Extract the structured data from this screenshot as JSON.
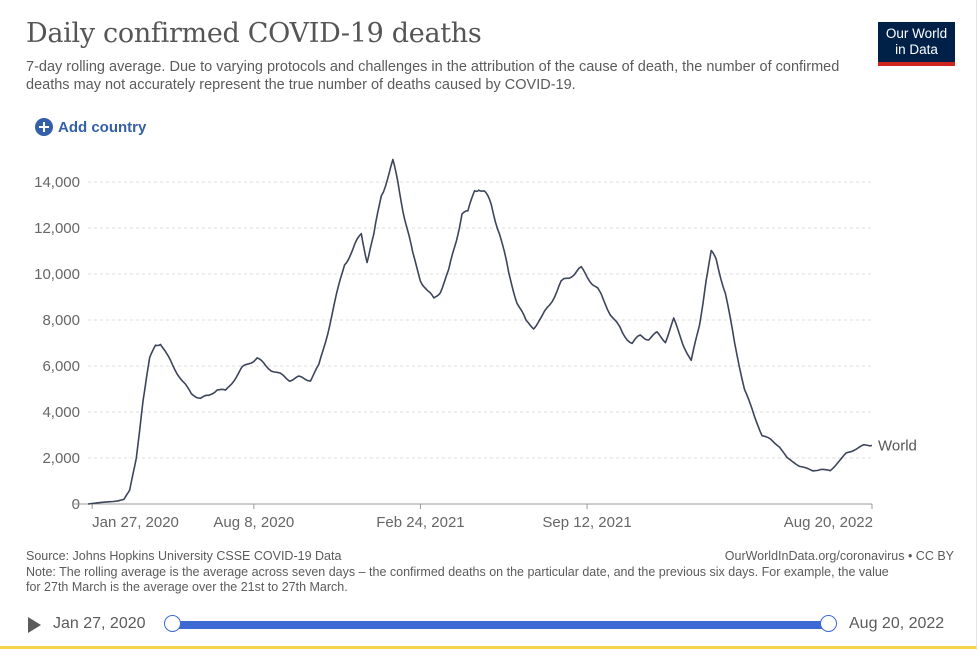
{
  "header": {
    "title": "Daily confirmed COVID-19 deaths",
    "subtitle": "7-day rolling average. Due to varying protocols and challenges in the attribution of the cause of death, the number of confirmed deaths may not accurately represent the true number of deaths caused by COVID-19.",
    "logo_line1": "Our World",
    "logo_line2": "in Data"
  },
  "controls": {
    "add_country_label": "Add country"
  },
  "chart_data": {
    "type": "line",
    "title": "Daily confirmed COVID-19 deaths",
    "xlabel": "",
    "ylabel": "",
    "ylim": [
      0,
      15000
    ],
    "y_ticks": [
      0,
      2000,
      4000,
      6000,
      8000,
      10000,
      12000,
      14000
    ],
    "y_tick_labels": [
      "0",
      "2,000",
      "4,000",
      "6,000",
      "8,000",
      "10,000",
      "12,000",
      "14,000"
    ],
    "x_tick_labels": [
      "Jan 27, 2020",
      "Aug 8, 2020",
      "Feb 24, 2021",
      "Sep 12, 2021",
      "Aug 20, 2022"
    ],
    "x_tick_dates": [
      "2020-01-27",
      "2020-08-08",
      "2021-02-24",
      "2021-09-12",
      "2022-08-20"
    ],
    "xlim": [
      "2020-01-22",
      "2022-08-20"
    ],
    "grid": "horizontal dashed",
    "line_color": "#3c4559",
    "series": [
      {
        "name": "World",
        "points": [
          [
            "2020-01-22",
            0
          ],
          [
            "2020-02-10",
            80
          ],
          [
            "2020-02-25",
            120
          ],
          [
            "2020-03-05",
            200
          ],
          [
            "2020-03-12",
            600
          ],
          [
            "2020-03-20",
            2000
          ],
          [
            "2020-03-28",
            4500
          ],
          [
            "2020-04-05",
            6300
          ],
          [
            "2020-04-12",
            6950
          ],
          [
            "2020-04-18",
            7000
          ],
          [
            "2020-04-25",
            6500
          ],
          [
            "2020-05-05",
            5900
          ],
          [
            "2020-05-15",
            5300
          ],
          [
            "2020-05-25",
            4800
          ],
          [
            "2020-06-05",
            4600
          ],
          [
            "2020-06-15",
            4700
          ],
          [
            "2020-06-25",
            5000
          ],
          [
            "2020-07-05",
            4900
          ],
          [
            "2020-07-15",
            5400
          ],
          [
            "2020-07-25",
            5900
          ],
          [
            "2020-08-05",
            6200
          ],
          [
            "2020-08-12",
            6350
          ],
          [
            "2020-08-22",
            6000
          ],
          [
            "2020-09-05",
            5700
          ],
          [
            "2020-09-20",
            5400
          ],
          [
            "2020-10-01",
            5500
          ],
          [
            "2020-10-15",
            5400
          ],
          [
            "2020-10-25",
            6000
          ],
          [
            "2020-11-05",
            7500
          ],
          [
            "2020-11-15",
            9000
          ],
          [
            "2020-11-25",
            10500
          ],
          [
            "2020-12-05",
            11000
          ],
          [
            "2020-12-15",
            11800
          ],
          [
            "2020-12-22",
            10600
          ],
          [
            "2020-12-30",
            11600
          ],
          [
            "2021-01-08",
            13500
          ],
          [
            "2021-01-18",
            14400
          ],
          [
            "2021-01-22",
            14800
          ],
          [
            "2021-01-28",
            14000
          ],
          [
            "2021-02-05",
            12500
          ],
          [
            "2021-02-15",
            10800
          ],
          [
            "2021-02-24",
            9800
          ],
          [
            "2021-03-05",
            9200
          ],
          [
            "2021-03-12",
            8900
          ],
          [
            "2021-03-20",
            9300
          ],
          [
            "2021-03-30",
            10100
          ],
          [
            "2021-04-08",
            11500
          ],
          [
            "2021-04-15",
            12700
          ],
          [
            "2021-04-22",
            12600
          ],
          [
            "2021-04-30",
            13700
          ],
          [
            "2021-05-05",
            13800
          ],
          [
            "2021-05-12",
            13500
          ],
          [
            "2021-05-20",
            13000
          ],
          [
            "2021-05-30",
            11800
          ],
          [
            "2021-06-10",
            10000
          ],
          [
            "2021-06-20",
            8800
          ],
          [
            "2021-07-01",
            7900
          ],
          [
            "2021-07-10",
            7700
          ],
          [
            "2021-07-20",
            8100
          ],
          [
            "2021-08-01",
            8900
          ],
          [
            "2021-08-12",
            9600
          ],
          [
            "2021-08-25",
            10000
          ],
          [
            "2021-09-05",
            10200
          ],
          [
            "2021-09-15",
            9800
          ],
          [
            "2021-09-25",
            9300
          ],
          [
            "2021-10-10",
            8300
          ],
          [
            "2021-10-25",
            7400
          ],
          [
            "2021-11-05",
            7000
          ],
          [
            "2021-11-15",
            7300
          ],
          [
            "2021-11-25",
            7200
          ],
          [
            "2021-12-05",
            7400
          ],
          [
            "2021-12-15",
            7100
          ],
          [
            "2021-12-25",
            8000
          ],
          [
            "2022-01-05",
            7000
          ],
          [
            "2022-01-15",
            6200
          ],
          [
            "2022-01-25",
            7800
          ],
          [
            "2022-02-02",
            9800
          ],
          [
            "2022-02-08",
            10900
          ],
          [
            "2022-02-14",
            10600
          ],
          [
            "2022-02-25",
            9200
          ],
          [
            "2022-03-08",
            7000
          ],
          [
            "2022-03-20",
            5000
          ],
          [
            "2022-04-01",
            3800
          ],
          [
            "2022-04-10",
            3000
          ],
          [
            "2022-04-20",
            2800
          ],
          [
            "2022-05-01",
            2500
          ],
          [
            "2022-05-10",
            2000
          ],
          [
            "2022-05-25",
            1650
          ],
          [
            "2022-06-10",
            1450
          ],
          [
            "2022-06-20",
            1500
          ],
          [
            "2022-07-01",
            1450
          ],
          [
            "2022-07-10",
            1800
          ],
          [
            "2022-07-20",
            2200
          ],
          [
            "2022-08-01",
            2400
          ],
          [
            "2022-08-10",
            2550
          ],
          [
            "2022-08-20",
            2550
          ]
        ]
      }
    ]
  },
  "footer": {
    "source": "Source: Johns Hopkins University CSSE COVID-19 Data",
    "credit": "OurWorldInData.org/coronavirus • CC BY",
    "note": "Note: The rolling average is the average across seven days – the confirmed deaths on the particular date, and the previous six days. For example, the value for 27th March is the average over the 21st to 27th March."
  },
  "timeline": {
    "start_label": "Jan 27, 2020",
    "end_label": "Aug 20, 2022"
  }
}
